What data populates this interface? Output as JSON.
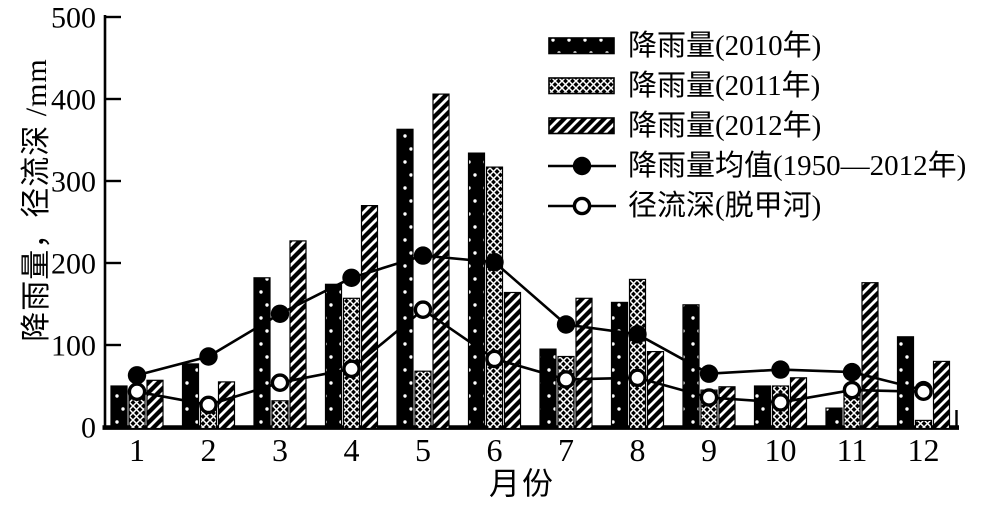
{
  "figure": {
    "background": "#ffffff",
    "ink": "#000000"
  },
  "y_axis": {
    "title": "降雨量，径流深 /mm",
    "tick_values": [
      0,
      100,
      200,
      300,
      400,
      500
    ],
    "tick_labels": [
      "0",
      "100",
      "200",
      "300",
      "400",
      "500"
    ],
    "min": 0,
    "max": 500
  },
  "x_axis": {
    "title": "月份",
    "tick_labels": [
      "1",
      "2",
      "3",
      "4",
      "5",
      "6",
      "7",
      "8",
      "9",
      "10",
      "11",
      "12"
    ]
  },
  "chart_data": {
    "type": "bar+line",
    "title": "",
    "xlabel": "月份",
    "ylabel": "降雨量，径流深 /mm",
    "ylim": [
      0,
      500
    ],
    "grid": false,
    "legend_position": "top-right",
    "categories": [
      1,
      2,
      3,
      4,
      5,
      6,
      7,
      8,
      9,
      10,
      11,
      12
    ],
    "series": [
      {
        "name": "降雨量(2010年)",
        "kind": "bar",
        "pattern": "dots",
        "values": [
          50,
          77,
          182,
          174,
          363,
          334,
          95,
          152,
          149,
          50,
          23,
          110
        ]
      },
      {
        "name": "降雨量(2011年)",
        "kind": "bar",
        "pattern": "crosshatch",
        "values": [
          42,
          24,
          32,
          157,
          68,
          317,
          86,
          180,
          45,
          50,
          48,
          8
        ]
      },
      {
        "name": "降雨量(2012年)",
        "kind": "bar",
        "pattern": "diagonal-stripes",
        "values": [
          57,
          55,
          227,
          270,
          406,
          164,
          157,
          92,
          49,
          60,
          176,
          80
        ]
      },
      {
        "name": "降雨量均值(1950—2012年)",
        "kind": "line",
        "marker": "filled-circle",
        "values": [
          63,
          86,
          138,
          182,
          209,
          201,
          125,
          113,
          65,
          70,
          67,
          45
        ]
      },
      {
        "name": "径流深(脱甲河)",
        "kind": "line",
        "marker": "open-circle",
        "values": [
          43,
          27,
          54,
          71,
          143,
          83,
          58,
          60,
          36,
          30,
          45,
          43
        ]
      }
    ]
  }
}
